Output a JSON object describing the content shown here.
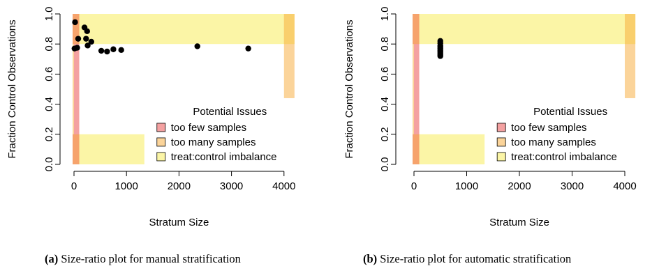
{
  "chart_data": [
    {
      "type": "scatter",
      "xlabel": "Stratum Size",
      "ylabel": "Fraction Control Observations",
      "xlim": [
        0,
        4200
      ],
      "ylim": [
        0,
        1.0
      ],
      "x_ticks": [
        "0",
        "1000",
        "2000",
        "3000",
        "4000"
      ],
      "y_ticks": [
        "0.0",
        "0.2",
        "0.4",
        "0.6",
        "0.8",
        "1.0"
      ],
      "points": [
        {
          "x": 10,
          "y": 0.77
        },
        {
          "x": 20,
          "y": 0.945
        },
        {
          "x": 60,
          "y": 0.775
        },
        {
          "x": 80,
          "y": 0.835
        },
        {
          "x": 200,
          "y": 0.91
        },
        {
          "x": 230,
          "y": 0.835
        },
        {
          "x": 250,
          "y": 0.885
        },
        {
          "x": 260,
          "y": 0.79
        },
        {
          "x": 330,
          "y": 0.815
        },
        {
          "x": 520,
          "y": 0.755
        },
        {
          "x": 630,
          "y": 0.75
        },
        {
          "x": 750,
          "y": 0.765
        },
        {
          "x": 900,
          "y": 0.76
        },
        {
          "x": 2350,
          "y": 0.785
        },
        {
          "x": 3320,
          "y": 0.77
        }
      ],
      "legend": {
        "title": "Potential Issues",
        "position": "bottom-right",
        "entries": [
          {
            "label": "too few samples",
            "color": "#f4a1a1"
          },
          {
            "label": "too many samples",
            "color": "#fbd49a"
          },
          {
            "label": "treat:control imbalance",
            "color": "#fbf5a6"
          }
        ]
      },
      "caption": {
        "tag": "(a)",
        "text": " Size-ratio plot for manual stratification"
      }
    },
    {
      "type": "scatter",
      "xlabel": "Stratum Size",
      "ylabel": "Fraction Control Observations",
      "xlim": [
        0,
        4200
      ],
      "ylim": [
        0,
        1.0
      ],
      "x_ticks": [
        "0",
        "1000",
        "2000",
        "3000",
        "4000"
      ],
      "y_ticks": [
        "0.0",
        "0.2",
        "0.4",
        "0.6",
        "0.8",
        "1.0"
      ],
      "points": [
        {
          "x": 500,
          "y": 0.82
        },
        {
          "x": 500,
          "y": 0.805
        },
        {
          "x": 500,
          "y": 0.79
        },
        {
          "x": 500,
          "y": 0.78
        },
        {
          "x": 500,
          "y": 0.77
        },
        {
          "x": 500,
          "y": 0.76
        },
        {
          "x": 500,
          "y": 0.75
        },
        {
          "x": 500,
          "y": 0.74
        },
        {
          "x": 500,
          "y": 0.73
        },
        {
          "x": 500,
          "y": 0.72
        }
      ],
      "legend": {
        "title": "Potential Issues",
        "position": "bottom-right",
        "entries": [
          {
            "label": "too few samples",
            "color": "#f4a1a1"
          },
          {
            "label": "too many samples",
            "color": "#fbd49a"
          },
          {
            "label": "treat:control imbalance",
            "color": "#fbf5a6"
          }
        ]
      },
      "caption": {
        "tag": "(b)",
        "text": " Size-ratio plot for automatic stratification"
      }
    }
  ],
  "colors": {
    "too_few": "#f4a1a1",
    "too_many": "#fbd49a",
    "imbalance": "#fbf5a6",
    "overlap": "#f9cf6d",
    "overlap_red": "#f6a36c",
    "point": "#000000"
  }
}
